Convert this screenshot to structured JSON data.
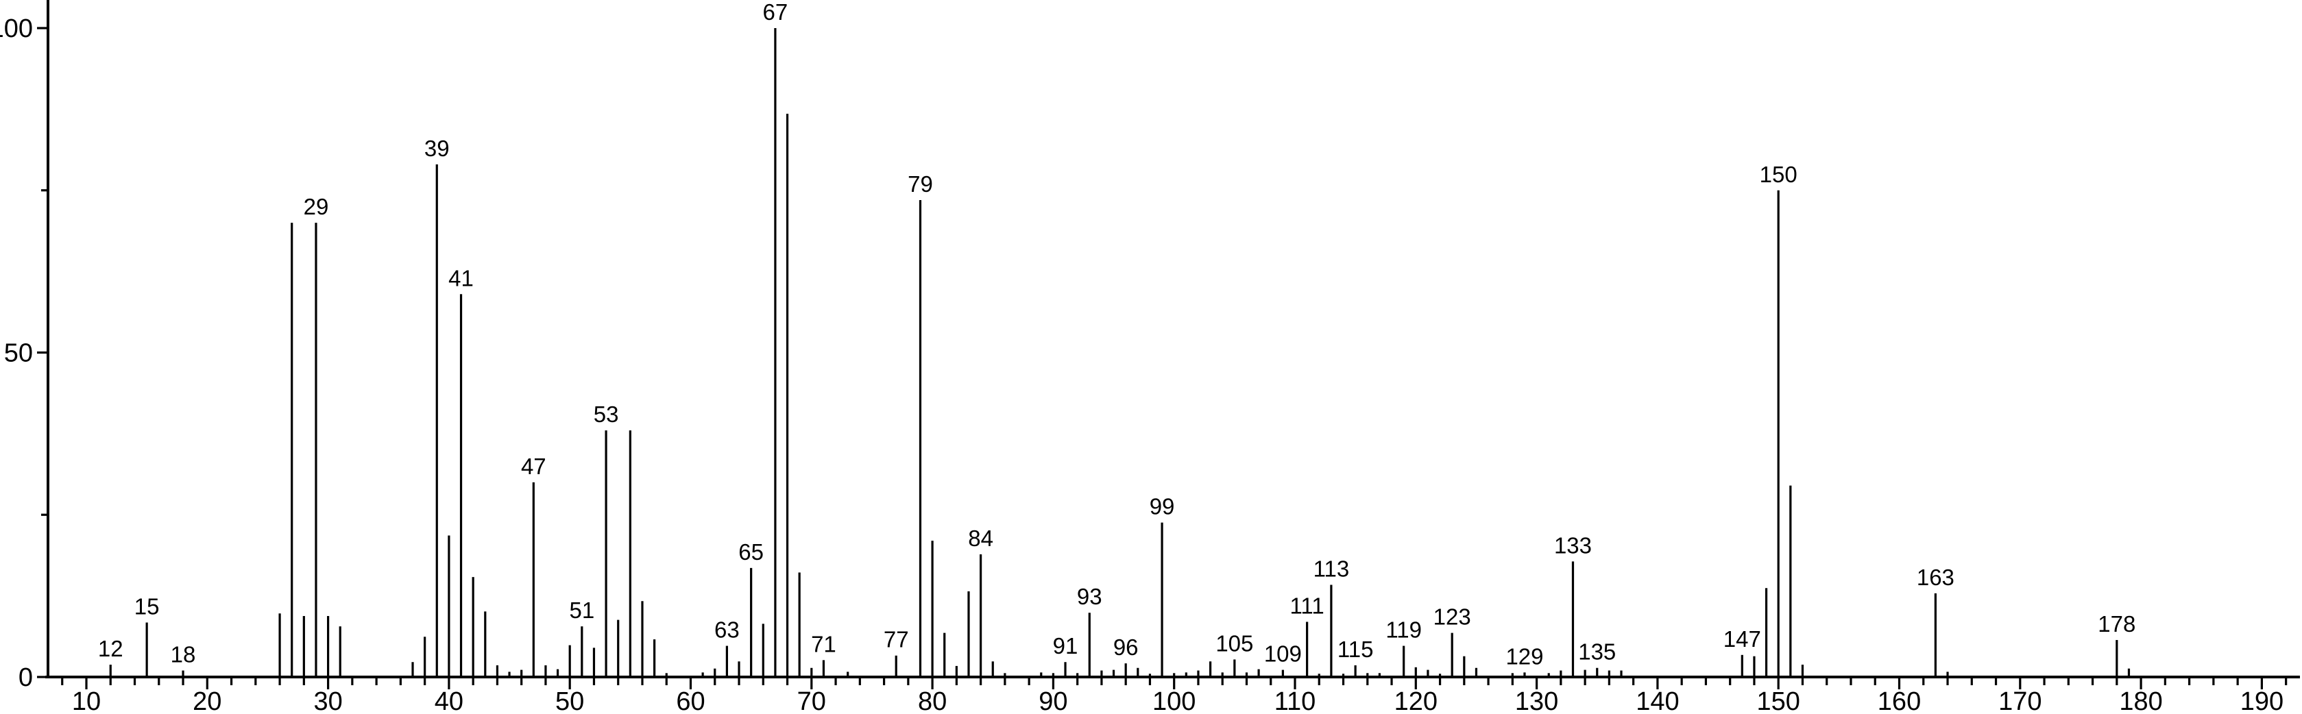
{
  "chart_data": {
    "type": "bar",
    "subtype": "mass-spectrum-stick-plot",
    "title": "",
    "xlabel": "",
    "ylabel": "",
    "grid": false,
    "legend": "none",
    "colors": {
      "background": "#ffffff",
      "axis": "#000000",
      "bar": "#000000",
      "text": "#000000"
    },
    "x_axis": {
      "min": 7,
      "max": 192,
      "major_tick_values": [
        10,
        20,
        30,
        40,
        50,
        60,
        70,
        80,
        90,
        100,
        110,
        120,
        130,
        140,
        150,
        160,
        170,
        180,
        190
      ],
      "major_tick_labels": [
        "10",
        "20",
        "30",
        "40",
        "50",
        "60",
        "70",
        "80",
        "90",
        "100",
        "110",
        "120",
        "130",
        "140",
        "150",
        "160",
        "170",
        "180",
        "190"
      ],
      "minor_tick_step": 2
    },
    "y_axis": {
      "min": 0,
      "max": 100,
      "major_tick_values": [
        0,
        50,
        100
      ],
      "major_tick_labels": [
        "0",
        "50",
        "100"
      ],
      "minor_tick_values": [
        25,
        75
      ]
    },
    "peaks": [
      {
        "mz": 12,
        "i": 1.9,
        "lbl": true
      },
      {
        "mz": 15,
        "i": 8.4,
        "lbl": true
      },
      {
        "mz": 18,
        "i": 1.0,
        "lbl": true
      },
      {
        "mz": 26,
        "i": 9.8,
        "lbl": false
      },
      {
        "mz": 27,
        "i": 70,
        "lbl": false
      },
      {
        "mz": 28,
        "i": 9.4,
        "lbl": false
      },
      {
        "mz": 29,
        "i": 70,
        "lbl": true
      },
      {
        "mz": 30,
        "i": 9.4,
        "lbl": false
      },
      {
        "mz": 31,
        "i": 7.8,
        "lbl": false
      },
      {
        "mz": 37,
        "i": 2.3,
        "lbl": false
      },
      {
        "mz": 38,
        "i": 6.2,
        "lbl": false
      },
      {
        "mz": 39,
        "i": 79,
        "lbl": true
      },
      {
        "mz": 40,
        "i": 21.8,
        "lbl": false
      },
      {
        "mz": 41,
        "i": 59,
        "lbl": true
      },
      {
        "mz": 42,
        "i": 15.4,
        "lbl": false
      },
      {
        "mz": 43,
        "i": 10.1,
        "lbl": false
      },
      {
        "mz": 44,
        "i": 1.8,
        "lbl": false
      },
      {
        "mz": 45,
        "i": 0.8,
        "lbl": false
      },
      {
        "mz": 46,
        "i": 1.1,
        "lbl": false
      },
      {
        "mz": 47,
        "i": 30,
        "lbl": true
      },
      {
        "mz": 48,
        "i": 1.8,
        "lbl": false
      },
      {
        "mz": 49,
        "i": 1.2,
        "lbl": false
      },
      {
        "mz": 50,
        "i": 4.9,
        "lbl": false
      },
      {
        "mz": 51,
        "i": 7.8,
        "lbl": true
      },
      {
        "mz": 52,
        "i": 4.5,
        "lbl": false
      },
      {
        "mz": 53,
        "i": 38,
        "lbl": true
      },
      {
        "mz": 54,
        "i": 8.8,
        "lbl": false
      },
      {
        "mz": 55,
        "i": 38,
        "lbl": false
      },
      {
        "mz": 56,
        "i": 11.7,
        "lbl": false
      },
      {
        "mz": 57,
        "i": 5.8,
        "lbl": false
      },
      {
        "mz": 58,
        "i": 0.6,
        "lbl": false
      },
      {
        "mz": 61,
        "i": 0.7,
        "lbl": false
      },
      {
        "mz": 62,
        "i": 1.3,
        "lbl": false
      },
      {
        "mz": 63,
        "i": 4.8,
        "lbl": true
      },
      {
        "mz": 64,
        "i": 2.4,
        "lbl": false
      },
      {
        "mz": 65,
        "i": 16.8,
        "lbl": true
      },
      {
        "mz": 66,
        "i": 8.2,
        "lbl": false
      },
      {
        "mz": 67,
        "i": 100,
        "lbl": true
      },
      {
        "mz": 68,
        "i": 86.8,
        "lbl": false
      },
      {
        "mz": 69,
        "i": 16.1,
        "lbl": false
      },
      {
        "mz": 70,
        "i": 1.4,
        "lbl": false
      },
      {
        "mz": 71,
        "i": 2.6,
        "lbl": true
      },
      {
        "mz": 73,
        "i": 0.8,
        "lbl": false
      },
      {
        "mz": 77,
        "i": 3.3,
        "lbl": true
      },
      {
        "mz": 79,
        "i": 73.5,
        "lbl": true
      },
      {
        "mz": 80,
        "i": 21.0,
        "lbl": false
      },
      {
        "mz": 81,
        "i": 6.8,
        "lbl": false
      },
      {
        "mz": 82,
        "i": 1.7,
        "lbl": false
      },
      {
        "mz": 83,
        "i": 13.2,
        "lbl": false
      },
      {
        "mz": 84,
        "i": 18.9,
        "lbl": true
      },
      {
        "mz": 85,
        "i": 2.4,
        "lbl": false
      },
      {
        "mz": 86,
        "i": 0.6,
        "lbl": false
      },
      {
        "mz": 89,
        "i": 0.7,
        "lbl": false
      },
      {
        "mz": 90,
        "i": 0.6,
        "lbl": false
      },
      {
        "mz": 91,
        "i": 2.3,
        "lbl": true
      },
      {
        "mz": 92,
        "i": 0.6,
        "lbl": false
      },
      {
        "mz": 93,
        "i": 9.9,
        "lbl": true
      },
      {
        "mz": 94,
        "i": 1.0,
        "lbl": false
      },
      {
        "mz": 95,
        "i": 1.1,
        "lbl": false
      },
      {
        "mz": 96,
        "i": 2.1,
        "lbl": true
      },
      {
        "mz": 97,
        "i": 1.4,
        "lbl": false
      },
      {
        "mz": 98,
        "i": 0.5,
        "lbl": false
      },
      {
        "mz": 99,
        "i": 23.8,
        "lbl": true
      },
      {
        "mz": 100,
        "i": 0.6,
        "lbl": false
      },
      {
        "mz": 101,
        "i": 0.7,
        "lbl": false
      },
      {
        "mz": 102,
        "i": 1.0,
        "lbl": false
      },
      {
        "mz": 103,
        "i": 2.4,
        "lbl": false
      },
      {
        "mz": 104,
        "i": 0.7,
        "lbl": false
      },
      {
        "mz": 105,
        "i": 2.7,
        "lbl": true
      },
      {
        "mz": 106,
        "i": 0.7,
        "lbl": false
      },
      {
        "mz": 107,
        "i": 1.2,
        "lbl": false
      },
      {
        "mz": 109,
        "i": 1.1,
        "lbl": true
      },
      {
        "mz": 111,
        "i": 8.5,
        "lbl": true
      },
      {
        "mz": 112,
        "i": 0.5,
        "lbl": false
      },
      {
        "mz": 113,
        "i": 14.2,
        "lbl": true
      },
      {
        "mz": 114,
        "i": 0.5,
        "lbl": false
      },
      {
        "mz": 115,
        "i": 1.8,
        "lbl": true
      },
      {
        "mz": 116,
        "i": 0.6,
        "lbl": false
      },
      {
        "mz": 117,
        "i": 0.6,
        "lbl": false
      },
      {
        "mz": 119,
        "i": 4.8,
        "lbl": true
      },
      {
        "mz": 120,
        "i": 1.5,
        "lbl": false
      },
      {
        "mz": 121,
        "i": 1.1,
        "lbl": false
      },
      {
        "mz": 122,
        "i": 0.5,
        "lbl": false
      },
      {
        "mz": 123,
        "i": 6.8,
        "lbl": true
      },
      {
        "mz": 124,
        "i": 3.2,
        "lbl": false
      },
      {
        "mz": 125,
        "i": 1.4,
        "lbl": false
      },
      {
        "mz": 128,
        "i": 0.6,
        "lbl": false
      },
      {
        "mz": 129,
        "i": 0.7,
        "lbl": true
      },
      {
        "mz": 131,
        "i": 0.6,
        "lbl": false
      },
      {
        "mz": 132,
        "i": 1.0,
        "lbl": false
      },
      {
        "mz": 133,
        "i": 17.8,
        "lbl": true
      },
      {
        "mz": 134,
        "i": 1.1,
        "lbl": false
      },
      {
        "mz": 135,
        "i": 1.4,
        "lbl": true
      },
      {
        "mz": 136,
        "i": 1.0,
        "lbl": false
      },
      {
        "mz": 137,
        "i": 1.0,
        "lbl": false
      },
      {
        "mz": 147,
        "i": 3.4,
        "lbl": true
      },
      {
        "mz": 148,
        "i": 3.2,
        "lbl": false
      },
      {
        "mz": 149,
        "i": 13.7,
        "lbl": false
      },
      {
        "mz": 150,
        "i": 75,
        "lbl": true
      },
      {
        "mz": 151,
        "i": 29.5,
        "lbl": false
      },
      {
        "mz": 152,
        "i": 1.9,
        "lbl": false
      },
      {
        "mz": 163,
        "i": 12.9,
        "lbl": true
      },
      {
        "mz": 164,
        "i": 0.8,
        "lbl": false
      },
      {
        "mz": 178,
        "i": 5.7,
        "lbl": true
      },
      {
        "mz": 179,
        "i": 1.3,
        "lbl": false
      }
    ]
  }
}
